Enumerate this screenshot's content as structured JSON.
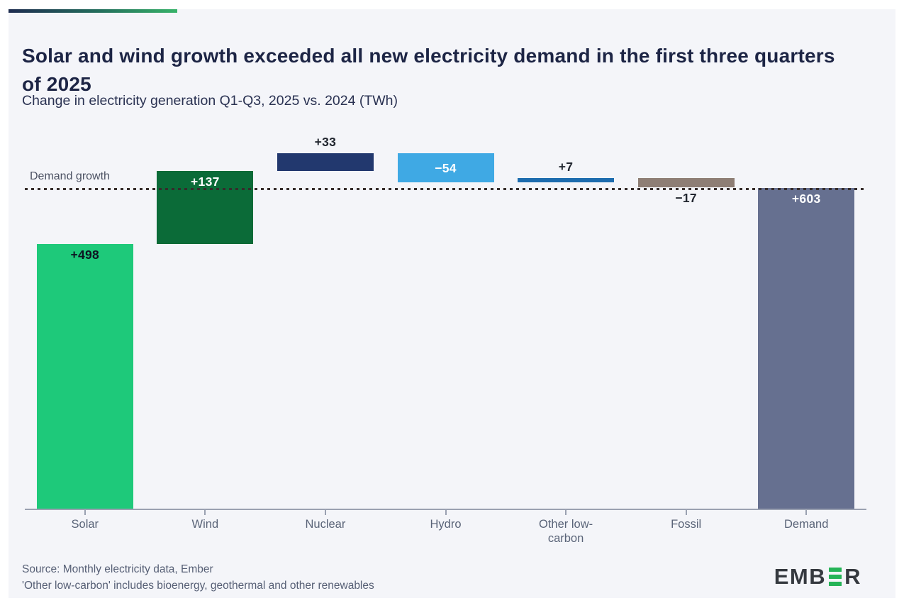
{
  "card": {
    "title": "Solar and wind growth exceeded all new electricity demand in the first three quarters of 2025",
    "subtitle": "Change in electricity generation Q1-Q3, 2025 vs. 2024 (TWh)"
  },
  "chart_data": {
    "type": "bar",
    "subtype": "waterfall",
    "title": "Solar and wind growth exceeded all new electricity demand in the first three quarters of 2025",
    "xlabel": "",
    "ylabel": "Change in electricity generation Q1-Q3, 2025 vs. 2024 (TWh)",
    "unit": "TWh",
    "ylim": [
      0,
      700
    ],
    "grid": false,
    "reference_line": {
      "label": "Demand growth",
      "value": 603,
      "style": "dotted",
      "color": "#352c2b"
    },
    "categories": [
      "Solar",
      "Wind",
      "Nuclear",
      "Hydro",
      "Other low-carbon",
      "Fossil",
      "Demand"
    ],
    "values": [
      498,
      137,
      33,
      -54,
      7,
      -17,
      603
    ],
    "items": [
      {
        "category": "Solar",
        "value": 498,
        "label": "+498",
        "color": "#1ec97a",
        "label_placement": "inside-top",
        "label_color": "#0e1422",
        "is_total": false
      },
      {
        "category": "Wind",
        "value": 137,
        "label": "+137",
        "color": "#0b6b38",
        "label_placement": "inside-top",
        "label_color": "#ffffff",
        "is_total": false
      },
      {
        "category": "Nuclear",
        "value": 33,
        "label": "+33",
        "color": "#22386e",
        "label_placement": "above",
        "label_color": "#21262f",
        "is_total": false
      },
      {
        "category": "Hydro",
        "value": -54,
        "label": "−54",
        "color": "#3fa9e4",
        "label_placement": "inside-center",
        "label_color": "#ffffff",
        "is_total": false
      },
      {
        "category": "Other low-carbon",
        "value": 7,
        "label": "+7",
        "color": "#1d6cae",
        "label_placement": "above",
        "label_color": "#21262f",
        "is_total": false
      },
      {
        "category": "Fossil",
        "value": -17,
        "label": "−17",
        "color": "#8e7e75",
        "label_placement": "below",
        "label_color": "#21262f",
        "is_total": false
      },
      {
        "category": "Demand",
        "value": 603,
        "label": "+603",
        "color": "#667090",
        "label_placement": "inside-top",
        "label_color": "#ffffff",
        "is_total": true
      }
    ]
  },
  "footer": {
    "source_line1": "Source: Monthly electricity data, Ember",
    "source_line2": "'Other low-carbon' includes bioenergy, geothermal and other renewables",
    "logo": {
      "name": "EMBER",
      "text_left": "EMB",
      "text_right": "R",
      "accent_color": "#25b457",
      "text_color": "#35393f"
    }
  }
}
